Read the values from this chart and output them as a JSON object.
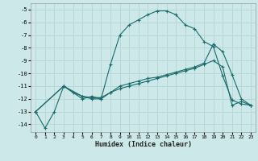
{
  "xlabel": "Humidex (Indice chaleur)",
  "bg_color": "#cce8e8",
  "grid_color": "#b8d8d8",
  "line_color": "#1a6b6b",
  "xlim": [
    -0.5,
    23.5
  ],
  "ylim": [
    -14.6,
    -4.5
  ],
  "yticks": [
    -5,
    -6,
    -7,
    -8,
    -9,
    -10,
    -11,
    -12,
    -13,
    -14
  ],
  "xticks": [
    0,
    1,
    2,
    3,
    4,
    5,
    6,
    7,
    8,
    9,
    10,
    11,
    12,
    13,
    14,
    15,
    16,
    17,
    18,
    19,
    20,
    21,
    22,
    23
  ],
  "line1_x": [
    0,
    1,
    2,
    3,
    4,
    5,
    6,
    7,
    8,
    9,
    10,
    11,
    12,
    13,
    14,
    15,
    16,
    17,
    18,
    19,
    20,
    21,
    22,
    23
  ],
  "line1_y": [
    -13.0,
    -14.3,
    -13.0,
    -11.0,
    -11.5,
    -11.8,
    -12.0,
    -12.0,
    -9.3,
    -7.0,
    -6.2,
    -5.8,
    -5.4,
    -5.1,
    -5.1,
    -5.4,
    -6.2,
    -6.5,
    -7.5,
    -7.9,
    -10.2,
    -12.1,
    -12.4,
    -12.5
  ],
  "line2_x": [
    0,
    3,
    5,
    6,
    7,
    8,
    9,
    10,
    11,
    12,
    13,
    14,
    15,
    16,
    17,
    18,
    19,
    20,
    21,
    22,
    23
  ],
  "line2_y": [
    -13.0,
    -11.0,
    -11.8,
    -11.9,
    -11.9,
    -11.5,
    -11.2,
    -11.0,
    -10.8,
    -10.6,
    -10.4,
    -10.2,
    -10.0,
    -9.8,
    -9.6,
    -9.3,
    -9.0,
    -9.5,
    -12.5,
    -12.2,
    -12.5
  ],
  "line3_x": [
    0,
    3,
    5,
    6,
    7,
    8,
    9,
    10,
    11,
    12,
    13,
    14,
    15,
    16,
    17,
    18,
    19,
    20,
    21,
    22,
    23
  ],
  "line3_y": [
    -13.0,
    -11.0,
    -12.0,
    -11.8,
    -12.0,
    -11.5,
    -11.0,
    -10.8,
    -10.6,
    -10.4,
    -10.3,
    -10.1,
    -9.9,
    -9.7,
    -9.5,
    -9.2,
    -7.7,
    -8.3,
    -10.1,
    -12.0,
    -12.5
  ]
}
